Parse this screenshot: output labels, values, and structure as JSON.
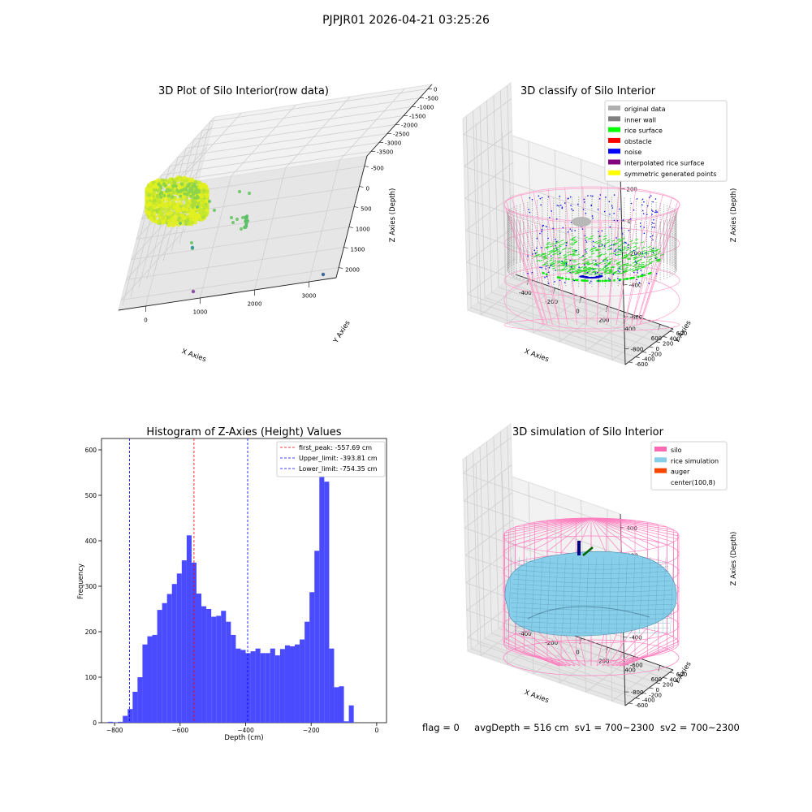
{
  "suptitle": "PJPJR01 2026-04-21 03:25:26",
  "status_line": {
    "flag": "flag = 0",
    "avg_depth": "avgDepth = 516 cm",
    "sv1": "sv1 = 700~2300",
    "sv2": "sv2 = 700~2300"
  },
  "chart_data": [
    {
      "type": "scatter",
      "panel": "top-left",
      "title": "3D Plot of Silo Interior(row data)",
      "xlabel": "X Axies",
      "ylabel": "Y Axies",
      "zlabel": "Z Axies (Depth)",
      "x_ticks": [
        "0",
        "1000",
        "2000",
        "3000"
      ],
      "y_ticks": [
        "-500",
        "0",
        "500",
        "1000",
        "1500",
        "2000"
      ],
      "z_ticks": [
        "0",
        "-500",
        "-1000",
        "-1500",
        "-2000",
        "-2500",
        "-3000",
        "-3500"
      ],
      "colormap": "viridis",
      "outliers": [
        {
          "x": 3300,
          "y": 0,
          "z": -3500,
          "color": "#3e6a9c"
        },
        {
          "x": 200,
          "y": 500,
          "z": -3400,
          "color": "#8a4ea3"
        },
        {
          "x": 200,
          "y": 1000,
          "z": -1900,
          "color": "#3a9a94"
        },
        {
          "x": 600,
          "y": 1500,
          "z": -600,
          "color": "#6bc184"
        },
        {
          "x": 800,
          "y": 1500,
          "z": -700,
          "color": "#6bc184"
        }
      ]
    },
    {
      "type": "scatter",
      "panel": "top-right",
      "title": "3D classify of Silo Interior",
      "legend_position": "top-right",
      "legend": [
        {
          "label": "original data",
          "color": "#b0b0b0"
        },
        {
          "label": "inner wall",
          "color": "#808080"
        },
        {
          "label": "rice surface",
          "color": "#00ff00"
        },
        {
          "label": "obstacle",
          "color": "#ff0000"
        },
        {
          "label": "noise",
          "color": "#0000ff"
        },
        {
          "label": "interpolated rice surface",
          "color": "#800080"
        },
        {
          "label": "symmetric generated points",
          "color": "#ffff00"
        }
      ],
      "xlabel": "X Axies",
      "ylabel": "Y Axies",
      "zlabel": "Z Axies (Depth)",
      "x_ticks": [
        "-400",
        "-200",
        "0",
        "200",
        "400",
        "600"
      ],
      "y_ticks": [
        "-600",
        "-400",
        "-200",
        "0",
        "200",
        "400",
        "600"
      ],
      "z_ticks": [
        "200",
        "0",
        "-200",
        "-400",
        "-600",
        "-800"
      ]
    },
    {
      "type": "bar",
      "panel": "bottom-left",
      "title": "Histogram of Z-Axies (Height) Values",
      "xlabel": "Depth (cm)",
      "ylabel": "Frequency",
      "xlim": [
        -840,
        30
      ],
      "ylim": [
        0,
        625
      ],
      "x_ticks": [
        -800,
        -600,
        -400,
        -200,
        0
      ],
      "y_ticks": [
        0,
        100,
        200,
        300,
        400,
        500,
        600
      ],
      "bar_color": "#4a4aff",
      "bin_start": -820,
      "bin_width": 15,
      "values": [
        2,
        1,
        2,
        15,
        30,
        68,
        100,
        172,
        190,
        193,
        248,
        263,
        283,
        305,
        328,
        357,
        412,
        352,
        284,
        256,
        250,
        233,
        235,
        246,
        222,
        193,
        163,
        160,
        153,
        157,
        163,
        153,
        153,
        163,
        148,
        162,
        170,
        168,
        172,
        183,
        222,
        287,
        378,
        580,
        530,
        163,
        78,
        80,
        3,
        38
      ],
      "lines": [
        {
          "label": "first_peak: -557.69 cm",
          "value": -557.69,
          "color": "#ff0000"
        },
        {
          "label": "Upper_limit: -393.81 cm",
          "value": -393.81,
          "color": "#0000ff"
        },
        {
          "label": "Lower_limit: -754.35 cm",
          "value": -754.35,
          "color": "#0000ff"
        }
      ],
      "legend_position": "top-right"
    },
    {
      "type": "scatter",
      "panel": "bottom-right",
      "title": "3D simulation of Silo Interior",
      "legend_position": "top-right",
      "legend": [
        {
          "label": "silo",
          "color": "#ff69b4"
        },
        {
          "label": "rice simulation",
          "color": "#87ceeb"
        },
        {
          "label": "auger",
          "color": "#ff4500"
        },
        {
          "label": "center(100,8)",
          "color": ""
        }
      ],
      "xlabel": "X Axies",
      "ylabel": "Y Axies",
      "zlabel": "Z Axies (Depth)",
      "x_ticks": [
        "-400",
        "-200",
        "0",
        "200",
        "400",
        "600"
      ],
      "y_ticks": [
        "-600",
        "-400",
        "-200",
        "0",
        "200",
        "400",
        "600"
      ],
      "z_ticks": [
        "400",
        "200",
        "0",
        "-200",
        "-400",
        "-600",
        "-800"
      ]
    }
  ]
}
